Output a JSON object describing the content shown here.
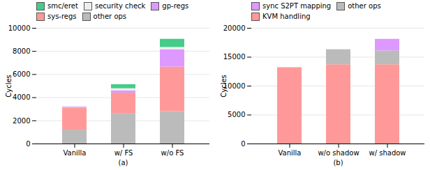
{
  "chart_data": [
    {
      "type": "bar",
      "stacked": true,
      "categories": [
        "Vanilla",
        "w/ FS",
        "w/o FS"
      ],
      "series": [
        {
          "name": "other ops",
          "color": "#bbbbbb",
          "values": [
            1200,
            2600,
            2800
          ]
        },
        {
          "name": "sys-regs",
          "color": "#ff9999",
          "values": [
            1900,
            1800,
            3850
          ]
        },
        {
          "name": "gp-regs",
          "color": "#dd99ff",
          "values": [
            80,
            200,
            1500
          ]
        },
        {
          "name": "security check",
          "color": "#eeeeee",
          "values": [
            80,
            180,
            200
          ]
        },
        {
          "name": "smc/eret",
          "color": "#44cc88",
          "values": [
            0,
            350,
            700
          ]
        }
      ],
      "ylim": [
        0,
        10000
      ],
      "yticks": [
        0,
        2000,
        4000,
        6000,
        8000,
        10000
      ],
      "ylabel": "Cycles",
      "xlabel": "(a)",
      "grid": true,
      "legend": "upper left"
    },
    {
      "type": "bar",
      "stacked": true,
      "categories": [
        "Vanilla",
        "w/o shadow",
        "w/ shadow"
      ],
      "series": [
        {
          "name": "KVM handling",
          "color": "#ff9999",
          "values": [
            13200,
            13700,
            13700
          ]
        },
        {
          "name": "other ops",
          "color": "#bbbbbb",
          "values": [
            0,
            2600,
            2400
          ]
        },
        {
          "name": "sync S2PT mapping",
          "color": "#dd99ff",
          "values": [
            0,
            0,
            2000
          ]
        }
      ],
      "ylim": [
        0,
        20000
      ],
      "yticks": [
        0,
        5000,
        10000,
        15000,
        20000
      ],
      "ylabel": "Cycles",
      "xlabel": "(b)",
      "grid": true,
      "legend": "upper left"
    }
  ]
}
